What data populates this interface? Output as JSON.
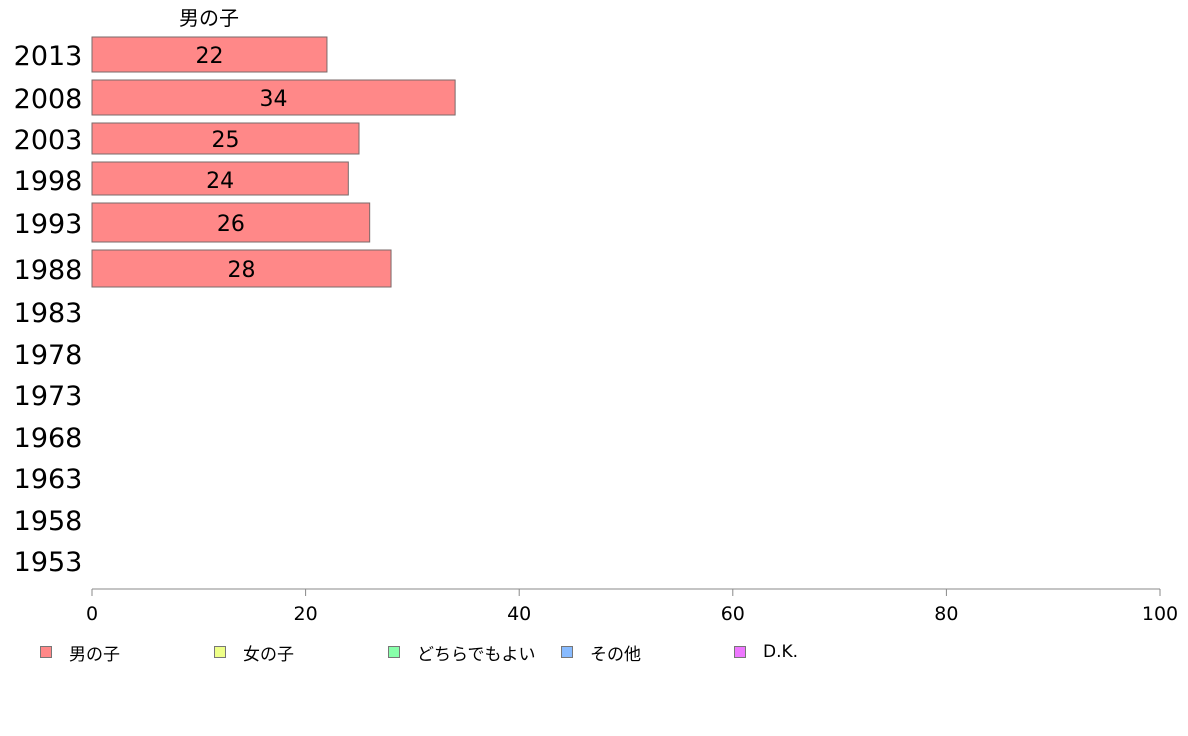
{
  "chart_data": {
    "type": "bar",
    "orientation": "horizontal",
    "series_label_top": "男の子",
    "categories": [
      "2013",
      "2008",
      "2003",
      "1998",
      "1993",
      "1988",
      "1983",
      "1978",
      "1973",
      "1968",
      "1963",
      "1958",
      "1953"
    ],
    "series": [
      {
        "name": "男の子",
        "color": "#ff8888",
        "values": [
          22,
          34,
          25,
          24,
          26,
          28,
          null,
          null,
          null,
          null,
          null,
          null,
          null
        ]
      }
    ],
    "value_labels": [
      "22",
      "34",
      "25",
      "24",
      "26",
      "28"
    ],
    "xlim": [
      0,
      100
    ],
    "xticks": [
      0,
      20,
      40,
      60,
      80,
      100
    ],
    "grid": false,
    "legend_position": "bottom",
    "legend": [
      {
        "label": "男の子",
        "color": "#ff8888"
      },
      {
        "label": "女の子",
        "color": "#eeff88"
      },
      {
        "label": "どちらでもよい",
        "color": "#88ffaa"
      },
      {
        "label": "その他",
        "color": "#88bbff"
      },
      {
        "label": "D.K.",
        "color": "#ee77ff"
      }
    ]
  }
}
